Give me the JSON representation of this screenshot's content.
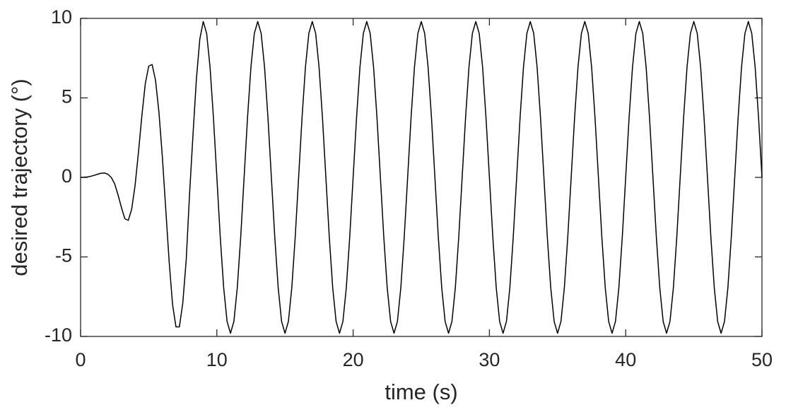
{
  "chart_data": {
    "type": "line",
    "xlabel": "time (s)",
    "ylabel": "desired trajectory (°)",
    "xlim": [
      0,
      50
    ],
    "ylim": [
      -10,
      10
    ],
    "xticks": [
      0,
      10,
      20,
      30,
      40,
      50
    ],
    "yticks": [
      -10,
      -5,
      0,
      5,
      10
    ],
    "x": [
      0,
      0.25,
      0.5,
      0.75,
      1,
      1.25,
      1.5,
      1.75,
      2,
      2.25,
      2.5,
      2.75,
      3,
      3.25,
      3.5,
      3.75,
      4,
      4.25,
      4.5,
      4.75,
      5,
      5.25,
      5.5,
      5.75,
      6,
      6.25,
      6.5,
      6.75,
      7,
      7.25,
      7.5,
      7.75,
      8,
      8.25,
      8.5,
      8.75,
      9,
      9.25,
      9.5,
      9.75,
      10,
      10.25,
      10.5,
      10.75,
      11,
      11.25,
      11.5,
      11.75,
      12,
      12.25,
      12.5,
      12.75,
      13,
      13.25,
      13.5,
      13.75,
      14,
      14.25,
      14.5,
      14.75,
      15,
      15.25,
      15.5,
      15.75,
      16,
      16.25,
      16.5,
      16.75,
      17,
      17.25,
      17.5,
      17.75,
      18,
      18.25,
      18.5,
      18.75,
      19,
      19.25,
      19.5,
      19.75,
      20,
      20.25,
      20.5,
      20.75,
      21,
      21.25,
      21.5,
      21.75,
      22,
      22.25,
      22.5,
      22.75,
      23,
      23.25,
      23.5,
      23.75,
      24,
      24.25,
      24.5,
      24.75,
      25,
      25.25,
      25.5,
      25.75,
      26,
      26.25,
      26.5,
      26.75,
      27,
      27.25,
      27.5,
      27.75,
      28,
      28.25,
      28.5,
      28.75,
      29,
      29.25,
      29.5,
      29.75,
      30,
      30.25,
      30.5,
      30.75,
      31,
      31.25,
      31.5,
      31.75,
      32,
      32.25,
      32.5,
      32.75,
      33,
      33.25,
      33.5,
      33.75,
      34,
      34.25,
      34.5,
      34.75,
      35,
      35.25,
      35.5,
      35.75,
      36,
      36.25,
      36.5,
      36.75,
      37,
      37.25,
      37.5,
      37.75,
      38,
      38.25,
      38.5,
      38.75,
      39,
      39.25,
      39.5,
      39.75,
      40,
      40.25,
      40.5,
      40.75,
      41,
      41.25,
      41.5,
      41.75,
      42,
      42.25,
      42.5,
      42.75,
      43,
      43.25,
      43.5,
      43.75,
      44,
      44.25,
      44.5,
      44.75,
      45,
      45.25,
      45.5,
      45.75,
      46,
      46.25,
      46.5,
      46.75,
      47,
      47.25,
      47.5,
      47.75,
      48,
      48.25,
      48.5,
      48.75,
      49,
      49.25,
      49.5,
      49.75,
      50
    ],
    "series": [
      {
        "color": "#000000",
        "values": [
          0,
          0.01,
          0.03,
          0.07,
          0.13,
          0.2,
          0.26,
          0.28,
          0.2,
          0,
          -0.4,
          -1.1,
          -1.9,
          -2.6,
          -2.7,
          -2,
          -0.5,
          1.6,
          3.9,
          5.9,
          7,
          7.1,
          6.1,
          4.1,
          1.3,
          -2,
          -5.3,
          -8,
          -9.4,
          -9.4,
          -7.9,
          -5.2,
          -1,
          2.7,
          6.2,
          8.7,
          9.8,
          9.06,
          6.93,
          3.75,
          0,
          -3.75,
          -6.93,
          -9.06,
          -9.8,
          -9.06,
          -6.93,
          -3.75,
          0,
          3.75,
          6.93,
          9.06,
          9.8,
          9.06,
          6.93,
          3.75,
          0,
          -3.75,
          -6.93,
          -9.06,
          -9.8,
          -9.06,
          -6.93,
          -3.75,
          0,
          3.75,
          6.93,
          9.06,
          9.8,
          9.06,
          6.93,
          3.75,
          0,
          -3.75,
          -6.93,
          -9.06,
          -9.8,
          -9.06,
          -6.93,
          -3.75,
          0,
          3.75,
          6.93,
          9.06,
          9.8,
          9.06,
          6.93,
          3.75,
          0,
          -3.75,
          -6.93,
          -9.06,
          -9.8,
          -9.06,
          -6.93,
          -3.75,
          0,
          3.75,
          6.93,
          9.06,
          9.8,
          9.06,
          6.93,
          3.75,
          0,
          -3.75,
          -6.93,
          -9.06,
          -9.8,
          -9.06,
          -6.93,
          -3.75,
          0,
          3.75,
          6.93,
          9.06,
          9.8,
          9.06,
          6.93,
          3.75,
          0,
          -3.75,
          -6.93,
          -9.06,
          -9.8,
          -9.06,
          -6.93,
          -3.75,
          0,
          3.75,
          6.93,
          9.06,
          9.8,
          9.06,
          6.93,
          3.75,
          0,
          -3.75,
          -6.93,
          -9.06,
          -9.8,
          -9.06,
          -6.93,
          -3.75,
          0,
          3.75,
          6.93,
          9.06,
          9.8,
          9.06,
          6.93,
          3.75,
          0,
          -3.75,
          -6.93,
          -9.06,
          -9.8,
          -9.06,
          -6.93,
          -3.75,
          0,
          3.75,
          6.93,
          9.06,
          9.8,
          9.06,
          6.93,
          3.75,
          0,
          -3.75,
          -6.93,
          -9.06,
          -9.8,
          -9.06,
          -6.93,
          -3.75,
          0,
          3.75,
          6.93,
          9.06,
          9.8,
          9.06,
          6.93,
          3.75,
          0,
          -3.75,
          -6.93,
          -9.06,
          -9.8,
          -9.06,
          -6.93,
          -3.75,
          0,
          3.75,
          6.93,
          9.06,
          9.8,
          9.06,
          6.93,
          3.75,
          0
        ]
      }
    ]
  }
}
